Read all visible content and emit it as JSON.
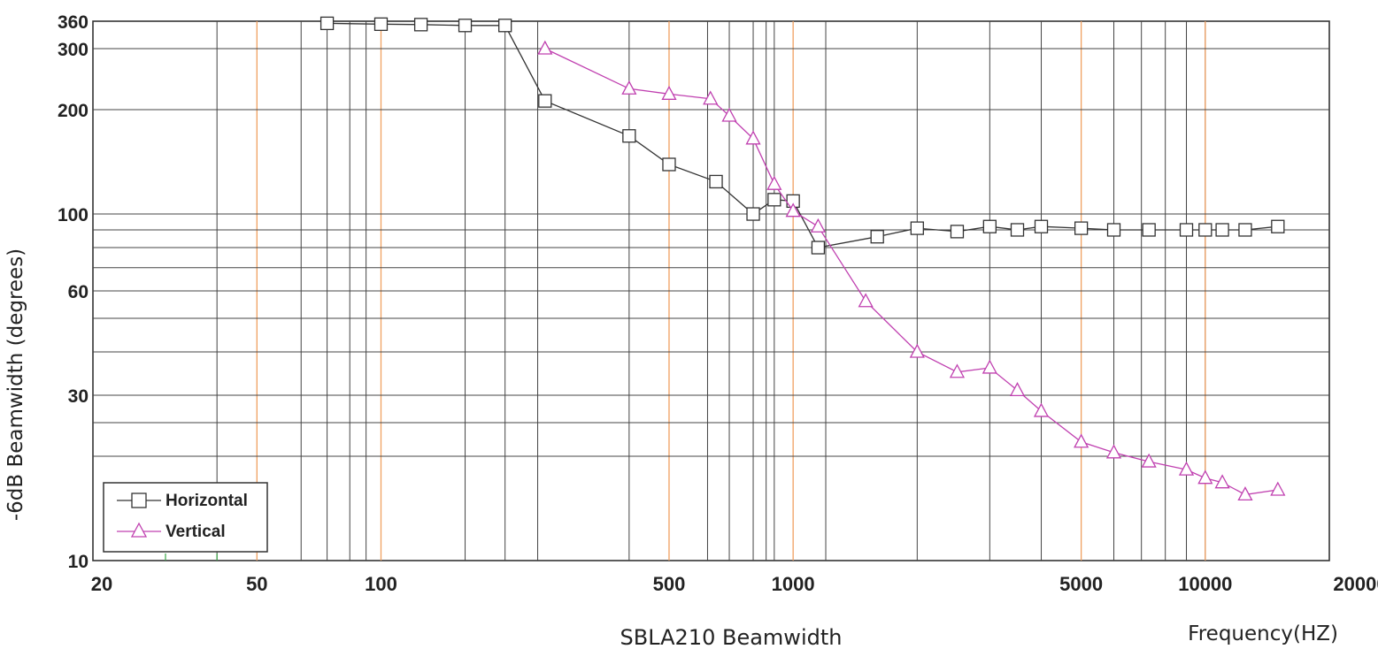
{
  "chart_data": {
    "type": "line",
    "title": "SBLA210 Beamwidth",
    "xlabel": "Frequency(HZ)",
    "ylabel": "-6dB Beamwidth (degrees)",
    "x_scale": "log",
    "y_scale": "log",
    "xlim": [
      20,
      20000
    ],
    "ylim": [
      10,
      360
    ],
    "x_ticks": [
      20,
      50,
      100,
      500,
      1000,
      5000,
      10000,
      20000
    ],
    "x_tick_labels": [
      "20",
      "50",
      "100",
      "500",
      "1000",
      "5000",
      "10000",
      "20000"
    ],
    "y_ticks": [
      10,
      30,
      60,
      100,
      200,
      300,
      360
    ],
    "y_tick_labels": [
      "10",
      "30",
      "60",
      "100",
      "200",
      "300",
      "360"
    ],
    "grid": true,
    "legend_position": "bottom-left",
    "series": [
      {
        "name": "Horizontal",
        "color": "#333333",
        "marker": "square",
        "x": [
          74,
          100,
          125,
          160,
          200,
          250,
          400,
          500,
          650,
          800,
          900,
          1000,
          1150,
          1600,
          2000,
          2500,
          3000,
          3500,
          4000,
          5000,
          6000,
          7300,
          9000,
          10000,
          11000,
          12500,
          15000
        ],
        "y": [
          355,
          353,
          352,
          350,
          350,
          212,
          168,
          139,
          124,
          100,
          110,
          109,
          80,
          86,
          91,
          89,
          92,
          90,
          92,
          91,
          90,
          90,
          90,
          90,
          90,
          90,
          92
        ]
      },
      {
        "name": "Vertical",
        "color": "#c040b0",
        "marker": "triangle",
        "y_marker_offset": 0,
        "x": [
          250,
          400,
          500,
          630,
          700,
          800,
          900,
          1000,
          1150,
          1500,
          2000,
          2500,
          3000,
          3500,
          4000,
          5000,
          6000,
          7300,
          9000,
          10000,
          11000,
          12500,
          15000
        ],
        "y": [
          300,
          230,
          222,
          215,
          192,
          165,
          122,
          102,
          92,
          56,
          40,
          35,
          36,
          31,
          27,
          22,
          20.5,
          19.3,
          18.3,
          17.3,
          16.8,
          15.5,
          16
        ]
      }
    ]
  }
}
